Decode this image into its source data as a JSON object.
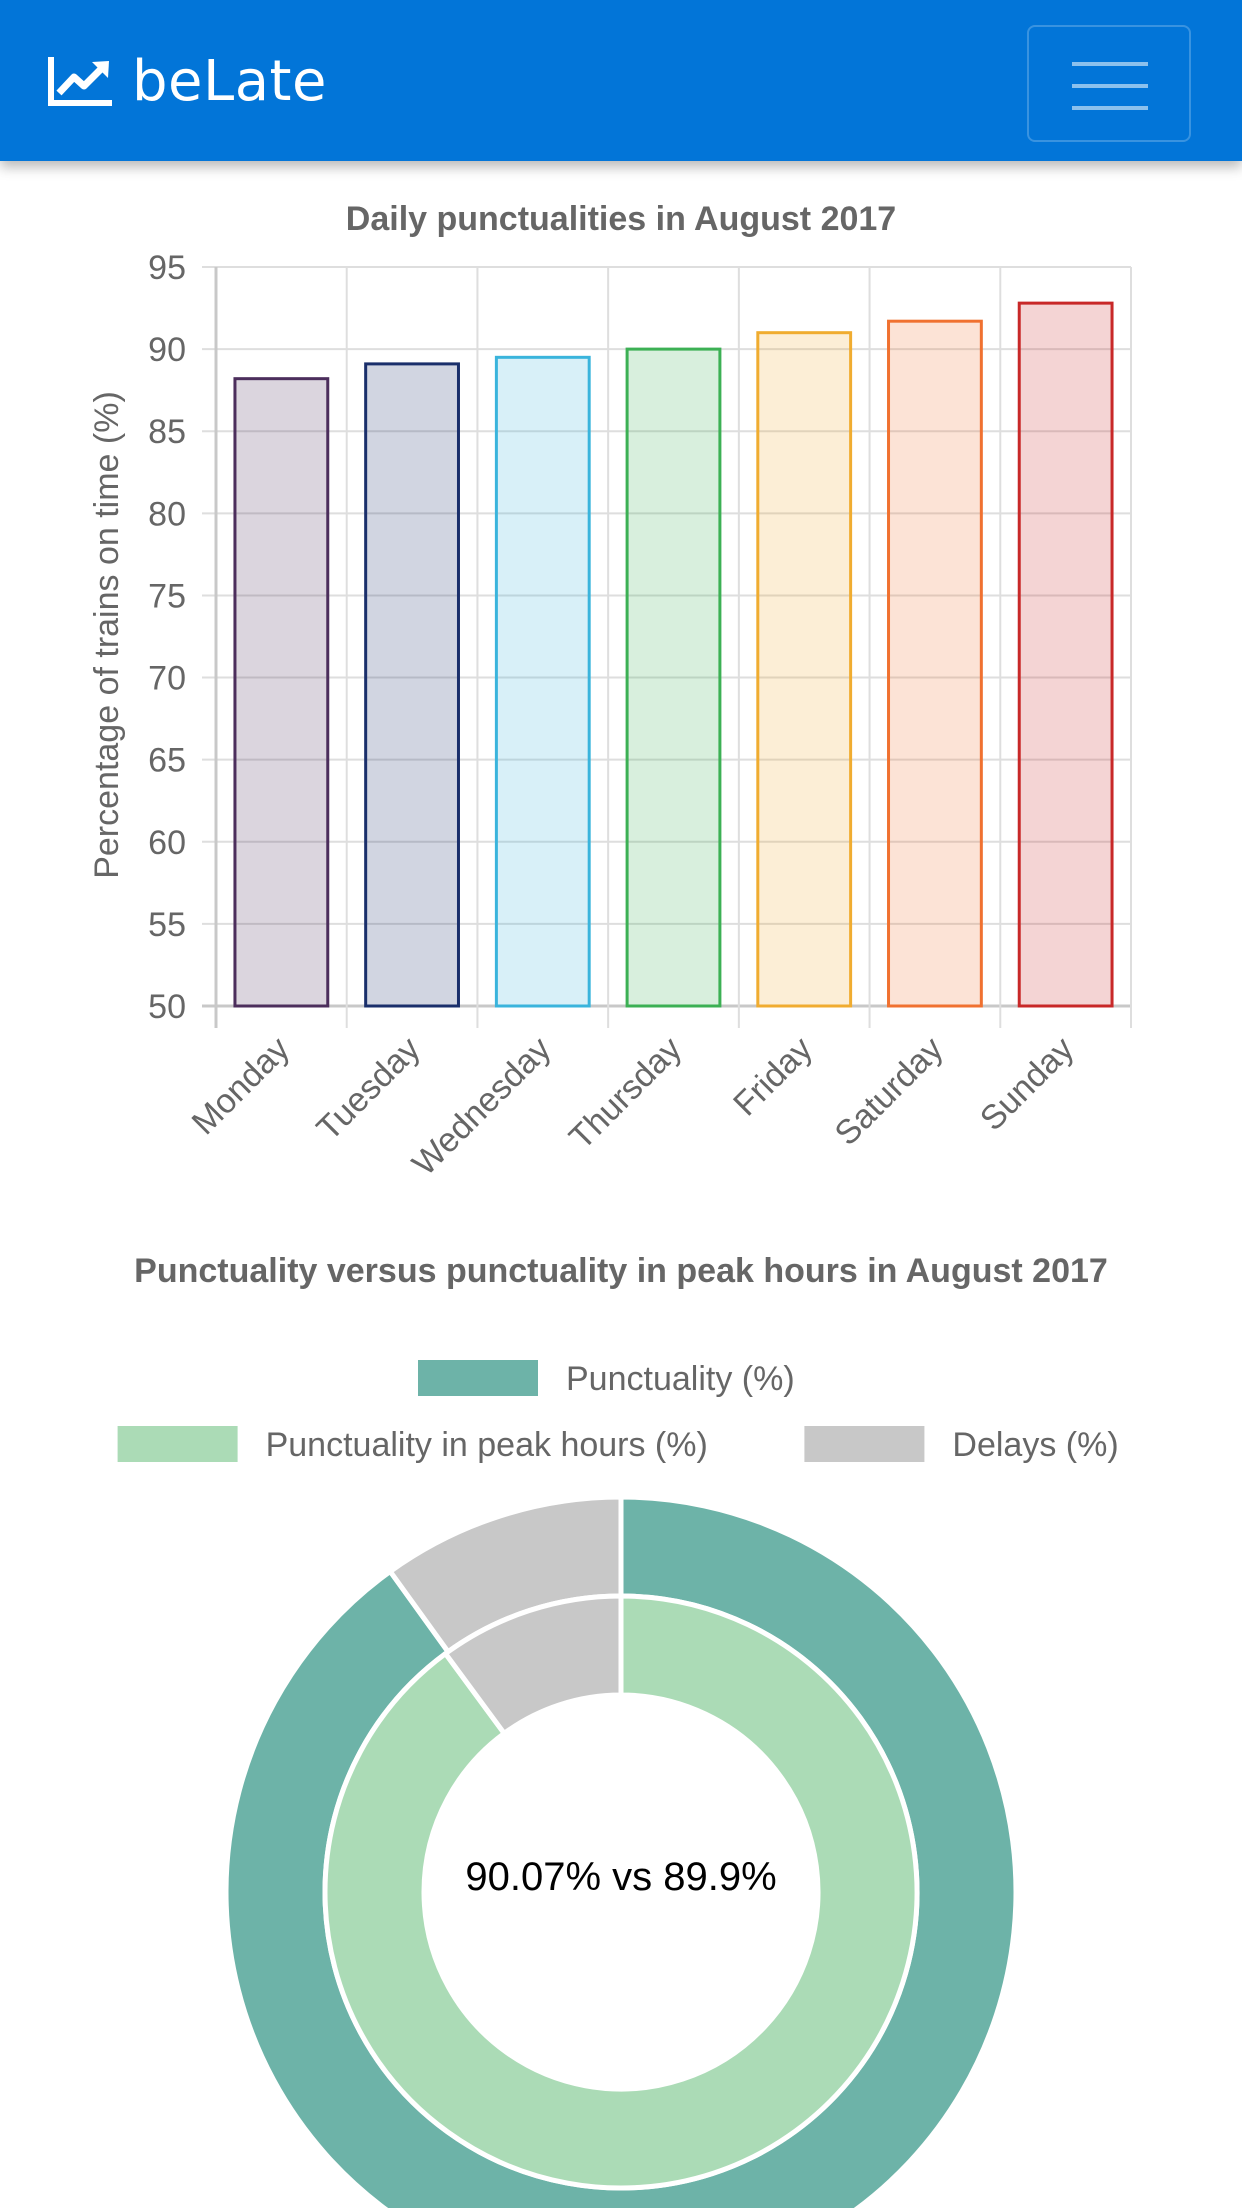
{
  "navbar": {
    "brand": "beLate",
    "brand_icon": "line-chart-icon",
    "menu_icon": "hamburger-menu-icon",
    "background": "#0275d8"
  },
  "chart_data": [
    {
      "type": "bar",
      "title": "Daily punctualities in August 2017",
      "ylabel": "Percentage of trains on time (%)",
      "xlabel": "",
      "categories": [
        "Monday",
        "Tuesday",
        "Wednesday",
        "Thursday",
        "Friday",
        "Saturday",
        "Sunday"
      ],
      "values": [
        88.2,
        89.1,
        89.5,
        90.0,
        91.0,
        91.7,
        92.8
      ],
      "ylim": [
        50,
        95
      ],
      "yticks": [
        50,
        55,
        60,
        65,
        70,
        75,
        80,
        85,
        90,
        95
      ],
      "grid": true,
      "border_colors": [
        "#4c2e5c",
        "#1a2f6b",
        "#3ab4dc",
        "#3cb054",
        "#f0ac30",
        "#f07130",
        "#c82828"
      ],
      "fill_colors": [
        "rgba(76,46,92,0.2)",
        "rgba(26,47,107,0.2)",
        "rgba(58,180,220,0.2)",
        "rgba(60,176,84,0.2)",
        "rgba(240,172,48,0.2)",
        "rgba(240,113,48,0.2)",
        "rgba(200,40,40,0.2)"
      ]
    },
    {
      "type": "pie",
      "title": "Punctuality versus punctuality in peak hours in August 2017",
      "center_label": "90.07% vs 89.9%",
      "legend": [
        {
          "label": "Punctuality (%)",
          "color": "#6db3a8"
        },
        {
          "label": "Punctuality in peak hours (%)",
          "color": "#abdbb6"
        },
        {
          "label": "Delays (%)",
          "color": "#c8c8c8"
        }
      ],
      "legend_position": "top",
      "series": [
        {
          "name": "Punctuality (%)",
          "values": [
            90.07,
            9.93
          ],
          "colors": [
            "#6db3a8",
            "#c8c8c8"
          ]
        },
        {
          "name": "Punctuality in peak hours (%)",
          "values": [
            89.9,
            10.1
          ],
          "colors": [
            "#abdbb6",
            "#c8c8c8"
          ]
        }
      ]
    }
  ]
}
